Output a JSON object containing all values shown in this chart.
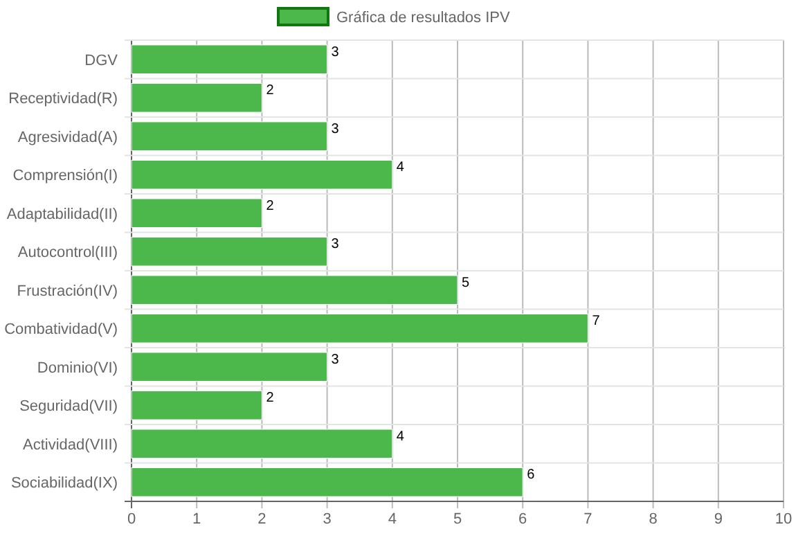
{
  "chart_data": {
    "type": "bar",
    "orientation": "horizontal",
    "categories": [
      "DGV",
      "Receptividad(R)",
      "Agresividad(A)",
      "Comprensión(I)",
      "Adaptabilidad(II)",
      "Autocontrol(III)",
      "Frustración(IV)",
      "Combatividad(V)",
      "Dominio(VI)",
      "Seguridad(VII)",
      "Actividad(VIII)",
      "Sociabilidad(IX)"
    ],
    "series": [
      {
        "name": "Gráfica de resultados IPV",
        "color": "#4cb84c",
        "values": [
          3,
          2,
          3,
          4,
          2,
          3,
          5,
          7,
          3,
          2,
          4,
          6
        ]
      }
    ],
    "xlim": [
      0,
      10
    ],
    "xticks": [
      0,
      1,
      2,
      3,
      4,
      5,
      6,
      7,
      8,
      9,
      10
    ],
    "grid": true,
    "legend": "top",
    "data_labels": true
  }
}
